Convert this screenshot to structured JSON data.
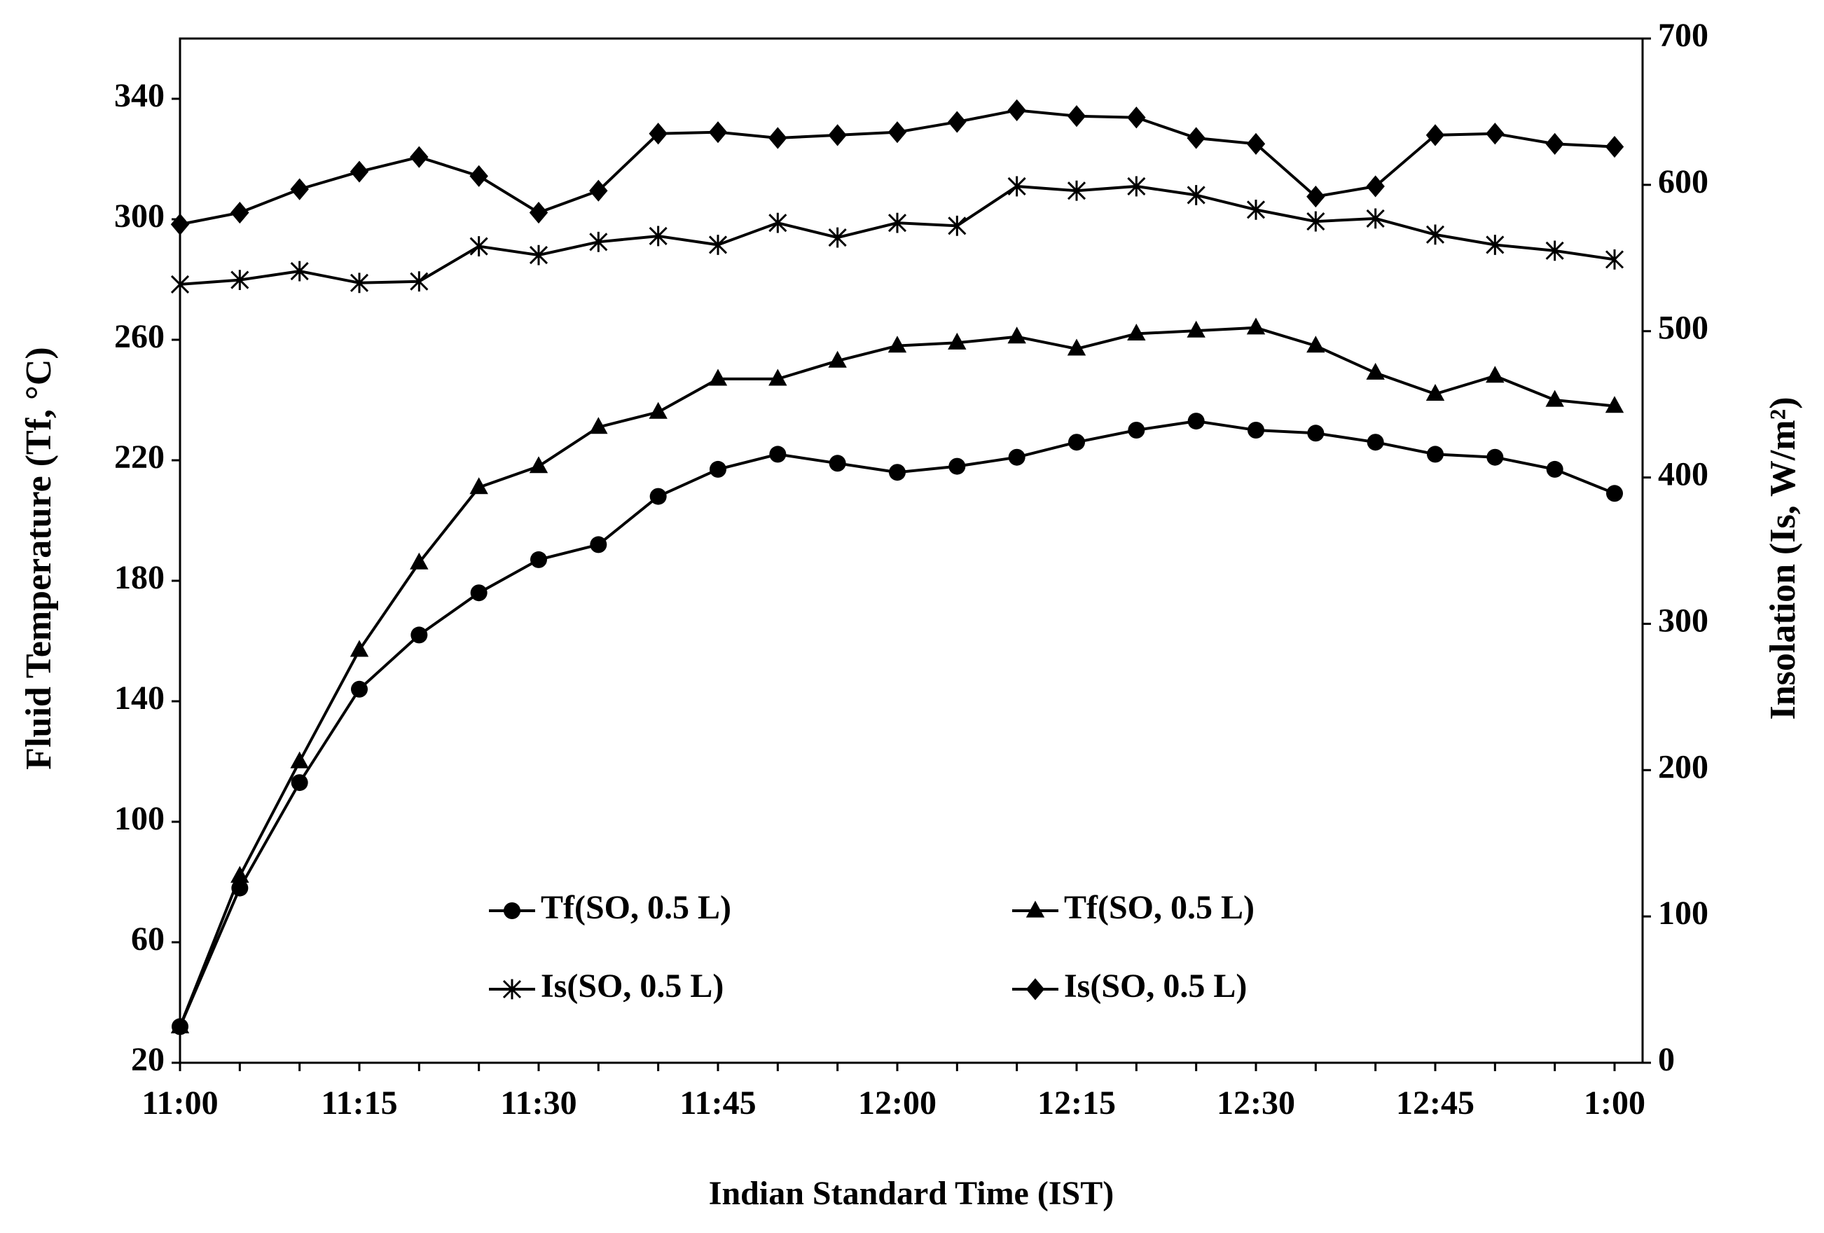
{
  "chart_data": {
    "type": "line",
    "xlabel": "Indian Standard Time (IST)",
    "ylabel": "Fluid Temperature (Tf, °C)",
    "y2label": "Insolation (Is, W/m²)",
    "categories": [
      "11:00",
      null,
      null,
      "11:15",
      null,
      null,
      "11:30",
      null,
      null,
      "11:45",
      null,
      null,
      "12:00",
      null,
      null,
      "12:15",
      null,
      null,
      "12:30",
      null,
      null,
      "12:45",
      null,
      null,
      "1:00"
    ],
    "ylim": [
      20,
      360
    ],
    "yticks": [
      20,
      60,
      100,
      140,
      180,
      220,
      260,
      300,
      340
    ],
    "y2lim": [
      0,
      700
    ],
    "y2ticks": [
      0,
      100,
      200,
      300,
      400,
      500,
      600,
      700
    ],
    "grid": false,
    "series": [
      {
        "name": "Tf(SO, 0.5 L)",
        "color": "#000000",
        "marker": "circle",
        "values": [
          32,
          78,
          113,
          144,
          162,
          176,
          187,
          192,
          208,
          217,
          222,
          219,
          216,
          218,
          221,
          226,
          230,
          233,
          230,
          229,
          226,
          222,
          221,
          217,
          209
        ]
      },
      {
        "name": "Tf(SO, 0.5 L)",
        "color": "#000000",
        "marker": "triangle",
        "values": [
          32,
          82,
          120,
          157,
          186,
          211,
          218,
          231,
          236,
          247,
          247,
          253,
          258,
          259,
          261,
          257,
          262,
          263,
          264,
          258,
          249,
          242,
          248,
          240,
          238
        ]
      },
      {
        "name": "Is(SO, 0.5 L)",
        "color": "#000000",
        "marker": "star",
        "axis": "y2",
        "values": [
          532,
          535,
          541,
          533,
          534,
          558,
          552,
          561,
          565,
          559,
          574,
          564,
          574,
          572,
          599,
          596,
          599,
          593,
          583,
          575,
          577,
          566,
          559,
          555,
          549
        ]
      },
      {
        "name": "Is(SO, 0.5 L)",
        "color": "#000000",
        "marker": "diamond",
        "axis": "y2",
        "values": [
          573,
          581,
          597,
          609,
          619,
          606,
          581,
          596,
          635,
          636,
          632,
          634,
          636,
          643,
          651,
          647,
          646,
          632,
          628,
          592,
          599,
          634,
          635,
          628,
          626
        ]
      }
    ]
  }
}
